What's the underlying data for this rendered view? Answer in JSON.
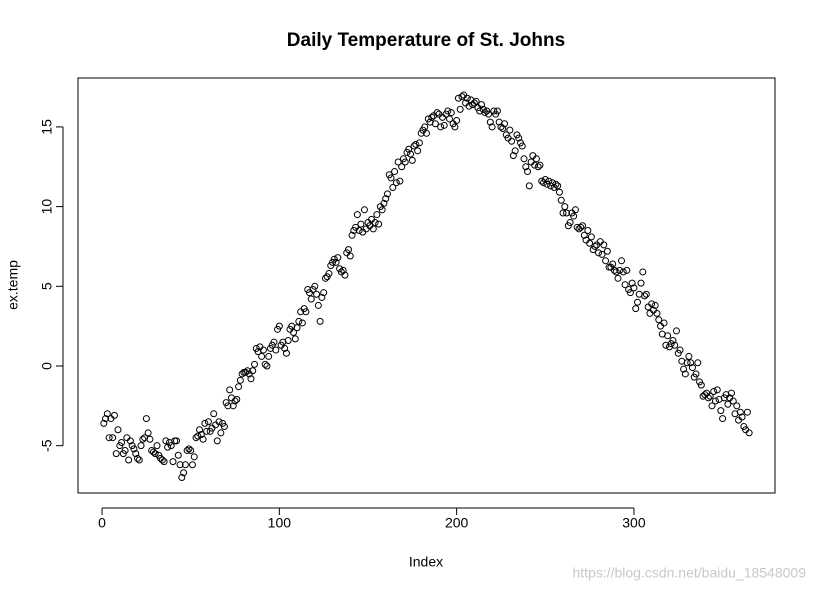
{
  "chart_data": {
    "type": "scatter",
    "title": "Daily Temperature of St. Johns",
    "x_label": "Index",
    "y_label": "ex.temp",
    "watermark": "https://blog.csdn.net/baidu_18548009",
    "color": "#000000",
    "xlim": [
      -13.56,
      379.56
    ],
    "ylim": [
      -7.97,
      18.07
    ],
    "xticks": [
      0,
      100,
      200,
      300
    ],
    "yticks": [
      -5,
      0,
      5,
      10,
      15
    ],
    "x": [
      1,
      2,
      3,
      4,
      5,
      6,
      7,
      8,
      9,
      10,
      11,
      12,
      13,
      14,
      15,
      16,
      17,
      18,
      19,
      20,
      21,
      22,
      23,
      24,
      25,
      26,
      27,
      28,
      29,
      30,
      31,
      32,
      33,
      34,
      35,
      36,
      37,
      38,
      39,
      40,
      41,
      42,
      43,
      44,
      45,
      46,
      47,
      48,
      49,
      50,
      51,
      52,
      53,
      54,
      55,
      56,
      57,
      58,
      59,
      60,
      61,
      62,
      63,
      64,
      65,
      66,
      67,
      68,
      69,
      70,
      71,
      72,
      73,
      74,
      75,
      76,
      77,
      78,
      79,
      80,
      81,
      82,
      83,
      84,
      85,
      86,
      87,
      88,
      89,
      90,
      91,
      92,
      93,
      94,
      95,
      96,
      97,
      98,
      99,
      100,
      101,
      102,
      103,
      104,
      105,
      106,
      107,
      108,
      109,
      110,
      111,
      112,
      113,
      114,
      115,
      116,
      117,
      118,
      119,
      120,
      121,
      122,
      123,
      124,
      125,
      126,
      127,
      128,
      129,
      130,
      131,
      132,
      133,
      134,
      135,
      136,
      137,
      138,
      139,
      140,
      141,
      142,
      143,
      144,
      145,
      146,
      147,
      148,
      149,
      150,
      151,
      152,
      153,
      154,
      155,
      156,
      157,
      158,
      159,
      160,
      161,
      162,
      163,
      164,
      165,
      166,
      167,
      168,
      169,
      170,
      171,
      172,
      173,
      174,
      175,
      176,
      177,
      178,
      179,
      180,
      181,
      182,
      183,
      184,
      185,
      186,
      187,
      188,
      189,
      190,
      191,
      192,
      193,
      194,
      195,
      196,
      197,
      198,
      199,
      200,
      201,
      202,
      203,
      204,
      205,
      206,
      207,
      208,
      209,
      210,
      211,
      212,
      213,
      214,
      215,
      216,
      217,
      218,
      219,
      220,
      221,
      222,
      223,
      224,
      225,
      226,
      227,
      228,
      229,
      230,
      231,
      232,
      233,
      234,
      235,
      236,
      237,
      238,
      239,
      240,
      241,
      242,
      243,
      244,
      245,
      246,
      247,
      248,
      249,
      250,
      251,
      252,
      253,
      254,
      255,
      256,
      257,
      258,
      259,
      260,
      261,
      262,
      263,
      264,
      265,
      266,
      267,
      268,
      269,
      270,
      271,
      272,
      273,
      274,
      275,
      276,
      277,
      278,
      279,
      280,
      281,
      282,
      283,
      284,
      285,
      286,
      287,
      288,
      289,
      290,
      291,
      292,
      293,
      294,
      295,
      296,
      297,
      298,
      299,
      300,
      301,
      302,
      303,
      304,
      305,
      306,
      307,
      308,
      309,
      310,
      311,
      312,
      313,
      314,
      315,
      316,
      317,
      318,
      319,
      320,
      321,
      322,
      323,
      324,
      325,
      326,
      327,
      328,
      329,
      330,
      331,
      332,
      333,
      334,
      335,
      336,
      337,
      338,
      339,
      340,
      341,
      342,
      343,
      344,
      345,
      346,
      347,
      348,
      349,
      350,
      351,
      352,
      353,
      354,
      355,
      356,
      357,
      358,
      359,
      360,
      361,
      362,
      363,
      364,
      365
    ],
    "values": [
      -3.6,
      -3.3,
      -3.0,
      -4.5,
      -3.3,
      -4.5,
      -3.1,
      -5.5,
      -4.0,
      -5.0,
      -4.8,
      -5.5,
      -5.3,
      -4.5,
      -5.9,
      -4.7,
      -5.0,
      -5.2,
      -5.5,
      -5.8,
      -5.9,
      -5.0,
      -4.6,
      -4.5,
      -3.3,
      -4.2,
      -4.6,
      -5.3,
      -5.4,
      -5.5,
      -5.0,
      -5.6,
      -5.8,
      -5.9,
      -6.0,
      -4.7,
      -5.1,
      -4.8,
      -5.0,
      -6.0,
      -4.7,
      -4.7,
      -5.6,
      -6.2,
      -7.0,
      -6.7,
      -6.2,
      -5.3,
      -5.2,
      -5.3,
      -6.2,
      -5.7,
      -4.5,
      -4.4,
      -4.0,
      -4.3,
      -4.6,
      -3.6,
      -4.1,
      -3.5,
      -4.1,
      -3.9,
      -3.0,
      -3.7,
      -4.7,
      -3.5,
      -4.2,
      -3.6,
      -3.8,
      -2.3,
      -2.5,
      -1.5,
      -2.0,
      -2.5,
      -2.2,
      -2.1,
      -1.3,
      -0.9,
      -0.5,
      -0.4,
      -0.4,
      -0.3,
      -0.5,
      -0.8,
      -0.3,
      0.1,
      1.1,
      0.9,
      1.2,
      0.6,
      1.0,
      0.1,
      0.0,
      0.6,
      1.1,
      1.3,
      1.5,
      1.0,
      2.3,
      2.5,
      1.3,
      1.5,
      1.1,
      0.8,
      1.6,
      2.3,
      2.5,
      2.1,
      1.7,
      2.4,
      2.8,
      3.4,
      2.7,
      3.6,
      3.4,
      4.8,
      4.6,
      4.2,
      4.8,
      5.0,
      4.5,
      3.8,
      2.8,
      4.3,
      4.6,
      5.5,
      5.6,
      5.8,
      6.3,
      6.5,
      6.7,
      6.5,
      6.8,
      6.1,
      5.9,
      6.0,
      5.7,
      7.1,
      7.3,
      6.9,
      8.2,
      8.5,
      8.7,
      9.5,
      8.5,
      8.9,
      8.4,
      9.8,
      8.6,
      9.0,
      8.8,
      9.2,
      8.6,
      9.0,
      9.5,
      8.9,
      10.0,
      9.8,
      10.2,
      10.5,
      10.8,
      12.0,
      11.8,
      11.2,
      12.2,
      11.5,
      12.8,
      11.6,
      12.5,
      13.0,
      12.8,
      13.4,
      13.6,
      13.3,
      12.9,
      13.8,
      13.9,
      13.5,
      14.0,
      14.6,
      14.8,
      15.0,
      14.6,
      15.5,
      15.3,
      15.6,
      15.7,
      15.2,
      15.9,
      15.8,
      15.0,
      15.6,
      15.1,
      15.8,
      16.0,
      15.5,
      15.9,
      15.2,
      15.0,
      15.4,
      16.8,
      16.1,
      16.9,
      17.0,
      16.5,
      16.8,
      16.3,
      16.7,
      16.4,
      16.5,
      16.6,
      16.2,
      16.0,
      16.4,
      16.1,
      15.9,
      16.0,
      15.8,
      15.3,
      15.0,
      16.0,
      15.8,
      16.0,
      15.3,
      15.0,
      14.9,
      15.2,
      14.5,
      14.3,
      14.8,
      14.1,
      13.2,
      13.5,
      14.5,
      14.3,
      14.0,
      13.8,
      13.0,
      12.5,
      12.2,
      11.3,
      12.8,
      13.2,
      12.6,
      13.0,
      12.5,
      12.6,
      11.6,
      11.5,
      11.7,
      11.4,
      11.6,
      11.3,
      11.5,
      11.2,
      11.4,
      11.3,
      10.9,
      10.4,
      9.6,
      10.0,
      9.6,
      8.8,
      9.0,
      9.6,
      9.4,
      9.8,
      8.7,
      8.6,
      8.7,
      8.8,
      8.2,
      7.9,
      8.5,
      7.7,
      8.1,
      7.3,
      7.5,
      7.6,
      7.1,
      7.8,
      7.0,
      7.6,
      6.6,
      7.2,
      6.2,
      6.2,
      6.4,
      6.0,
      5.9,
      5.5,
      6.0,
      6.6,
      5.9,
      5.1,
      6.0,
      4.8,
      4.6,
      5.2,
      4.9,
      3.6,
      4.0,
      4.5,
      5.2,
      5.9,
      4.4,
      4.5,
      3.7,
      3.3,
      3.9,
      3.5,
      3.8,
      3.3,
      2.9,
      2.5,
      2.0,
      2.7,
      1.3,
      1.9,
      1.2,
      1.4,
      1.6,
      1.3,
      2.2,
      0.8,
      1.0,
      0.3,
      -0.2,
      -0.5,
      0.2,
      0.6,
      0.2,
      -0.1,
      -0.7,
      -0.5,
      0.2,
      -1.0,
      -1.2,
      -1.9,
      -1.8,
      -1.7,
      -2.0,
      -1.9,
      -2.5,
      -1.6,
      -2.2,
      -1.5,
      -2.1,
      -2.8,
      -3.3,
      -2.0,
      -1.8,
      -2.4,
      -2.0,
      -1.7,
      -2.2,
      -3.0,
      -2.5,
      -3.4,
      -2.9,
      -3.2,
      -3.8,
      -4.0,
      -2.9,
      -4.2
    ]
  }
}
